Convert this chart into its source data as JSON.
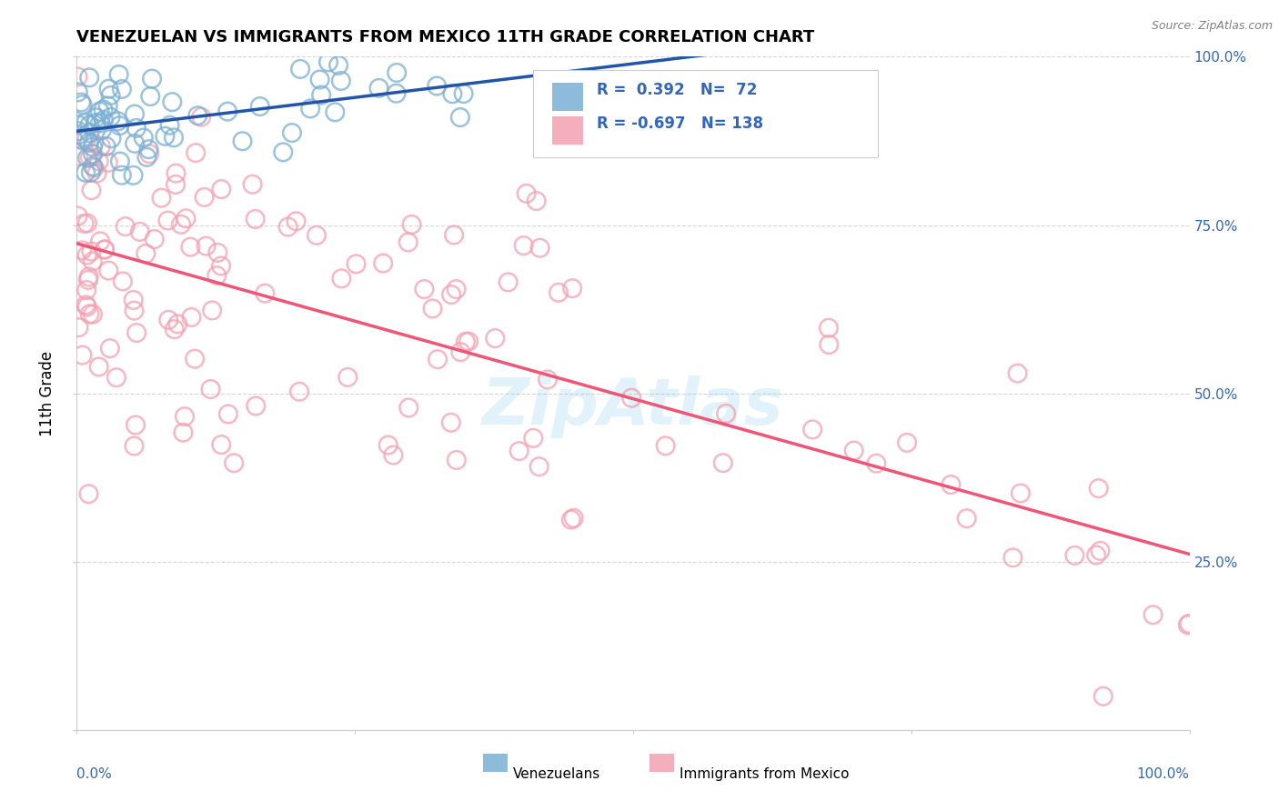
{
  "title": "VENEZUELAN VS IMMIGRANTS FROM MEXICO 11TH GRADE CORRELATION CHART",
  "source": "Source: ZipAtlas.com",
  "ylabel": "11th Grade",
  "legend_venezuelans": "Venezuelans",
  "legend_mexico": "Immigrants from Mexico",
  "r_venezuelan": 0.392,
  "n_venezuelan": 72,
  "r_mexico": -0.697,
  "n_mexico": 138,
  "blue_scatter_color": "#7BAFD4",
  "pink_scatter_color": "#F4A0B0",
  "blue_line_color": "#2255AA",
  "pink_line_color": "#EE5577",
  "axis_label_color": "#3366BB",
  "background_color": "#FFFFFF",
  "grid_color": "#CCCCCC",
  "seed": 1234
}
